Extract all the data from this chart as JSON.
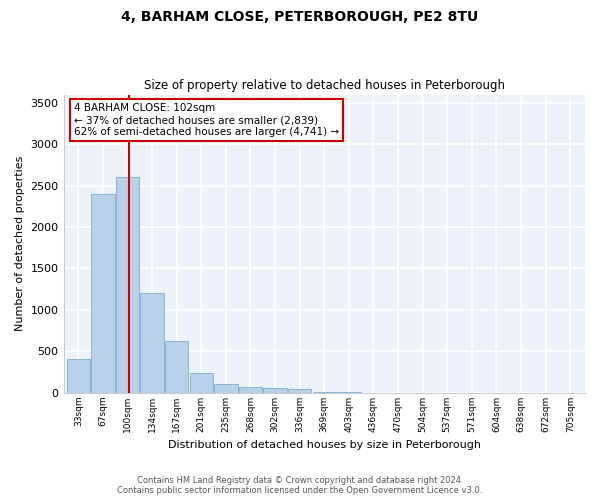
{
  "title": "4, BARHAM CLOSE, PETERBOROUGH, PE2 8TU",
  "subtitle": "Size of property relative to detached houses in Peterborough",
  "xlabel": "Distribution of detached houses by size in Peterborough",
  "ylabel": "Number of detached properties",
  "footer_line1": "Contains HM Land Registry data © Crown copyright and database right 2024.",
  "footer_line2": "Contains public sector information licensed under the Open Government Licence v3.0.",
  "categories": [
    "33sqm",
    "67sqm",
    "100sqm",
    "134sqm",
    "167sqm",
    "201sqm",
    "235sqm",
    "268sqm",
    "302sqm",
    "336sqm",
    "369sqm",
    "403sqm",
    "436sqm",
    "470sqm",
    "504sqm",
    "537sqm",
    "571sqm",
    "604sqm",
    "638sqm",
    "672sqm",
    "705sqm"
  ],
  "values": [
    400,
    2400,
    2600,
    1200,
    620,
    240,
    100,
    70,
    60,
    40,
    5,
    5,
    0,
    0,
    0,
    0,
    0,
    0,
    0,
    0,
    0
  ],
  "bar_color": "#b8d0e8",
  "bar_edge_color": "#7aafd4",
  "background_color": "#edf2f9",
  "grid_color": "#ffffff",
  "annotation_line1": "4 BARHAM CLOSE: 102sqm",
  "annotation_line2": "← 37% of detached houses are smaller (2,839)",
  "annotation_line3": "62% of semi-detached houses are larger (4,741) →",
  "annotation_box_color": "#ffffff",
  "annotation_box_edge": "#cc0000",
  "property_line_color": "#cc0000",
  "ylim": [
    0,
    3600
  ],
  "yticks": [
    0,
    500,
    1000,
    1500,
    2000,
    2500,
    3000,
    3500
  ],
  "bin_width": 34,
  "property_sqm": 102
}
